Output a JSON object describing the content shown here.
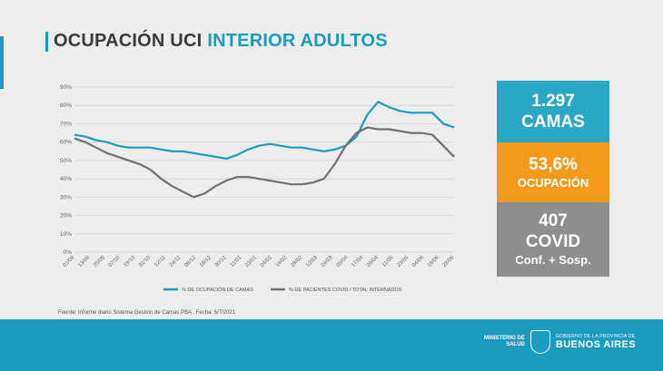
{
  "header": {
    "title_part1": "OCUPACIÓN UCI",
    "title_part2": "INTERIOR ADULTOS"
  },
  "colors": {
    "accent": "#1a9cc0",
    "occupancy": "#f39a1d",
    "covid": "#8e8e8e",
    "covid_line": "#707070",
    "beds_box": "#2ba7c6"
  },
  "stats": {
    "beds_value": "1.297",
    "beds_label": "CAMAS",
    "occupancy_value": "53,6%",
    "occupancy_label": "OCUPACIÓN",
    "covid_value": "407",
    "covid_label": "COVID",
    "covid_sub": "Conf. + Sosp."
  },
  "source": "Fuente: Informe diario Sistema Gestión de Camas PBA . Fecha: 5/7/2021",
  "logo": {
    "ministry": [
      "MINISTERIO DE",
      "SALUD"
    ],
    "gov_small": "GOBIERNO DE LA PROVINCIA DE",
    "gov_big": "BUENOS AIRES"
  },
  "chart_data": {
    "type": "line",
    "title": "",
    "ylim": [
      0,
      90
    ],
    "y_ticks": [
      "0%",
      "10%",
      "20%",
      "30%",
      "40%",
      "50%",
      "60%",
      "70%",
      "80%",
      "90%"
    ],
    "x_tick_labels": [
      "01/09",
      "13/09",
      "25/09",
      "07/10",
      "19/10",
      "31/10",
      "12/11",
      "24/11",
      "06/12",
      "18/12",
      "30/12",
      "11/01",
      "23/01",
      "04/02",
      "16/02",
      "28/02",
      "12/03",
      "24/03",
      "05/04",
      "17/04",
      "29/04",
      "11/05",
      "23/05",
      "04/06",
      "16/06",
      "28/06"
    ],
    "legend": [
      "% DE OCUPACIÓN DE CAMAS",
      "% DE PACIENTES COVID / TOTAL INTERNADOS"
    ],
    "grid": true,
    "series": [
      {
        "name": "% DE OCUPACIÓN DE CAMAS",
        "color": "#1a9cc0",
        "values": [
          64,
          63,
          61,
          60,
          58,
          57,
          57,
          57,
          56,
          55,
          55,
          54,
          53,
          52,
          51,
          53,
          56,
          58,
          59,
          58,
          57,
          57,
          56,
          55,
          56,
          58,
          63,
          75,
          82,
          79,
          77,
          76,
          76,
          76,
          70,
          68
        ]
      },
      {
        "name": "% DE PACIENTES COVID / TOTAL INTERNADOS",
        "color": "#707070",
        "values": [
          62,
          60,
          57,
          54,
          52,
          50,
          48,
          45,
          40,
          36,
          33,
          30,
          32,
          36,
          39,
          41,
          41,
          40,
          39,
          38,
          37,
          37,
          38,
          40,
          48,
          58,
          65,
          68,
          67,
          67,
          66,
          65,
          65,
          64,
          58,
          52
        ]
      }
    ]
  }
}
